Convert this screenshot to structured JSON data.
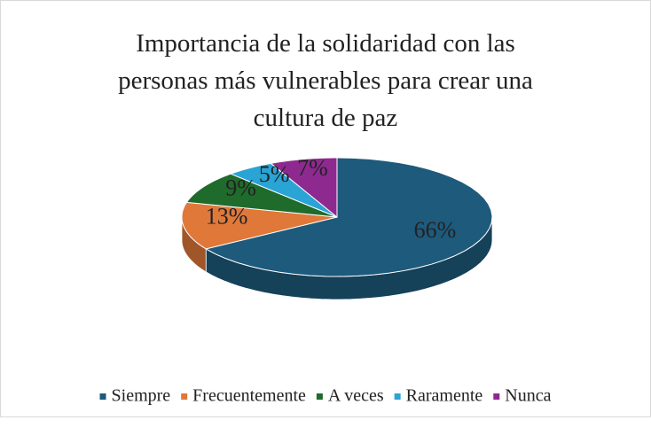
{
  "chart_data": {
    "type": "pie3d",
    "title": "Importancia de la solidaridad con las personas más vulnerables para crear una cultura de paz",
    "categories": [
      "Siempre",
      "Frecuentemente",
      "A veces",
      "Raramente",
      "Nunca"
    ],
    "values": [
      66,
      13,
      9,
      5,
      7
    ],
    "value_labels": [
      "66%",
      "13%",
      "9%",
      "5%",
      "7%"
    ],
    "colors": [
      "#1d5a7c",
      "#e0783a",
      "#1f6b2c",
      "#2aa3d5",
      "#8e2a8f"
    ],
    "legend": "bottom"
  }
}
